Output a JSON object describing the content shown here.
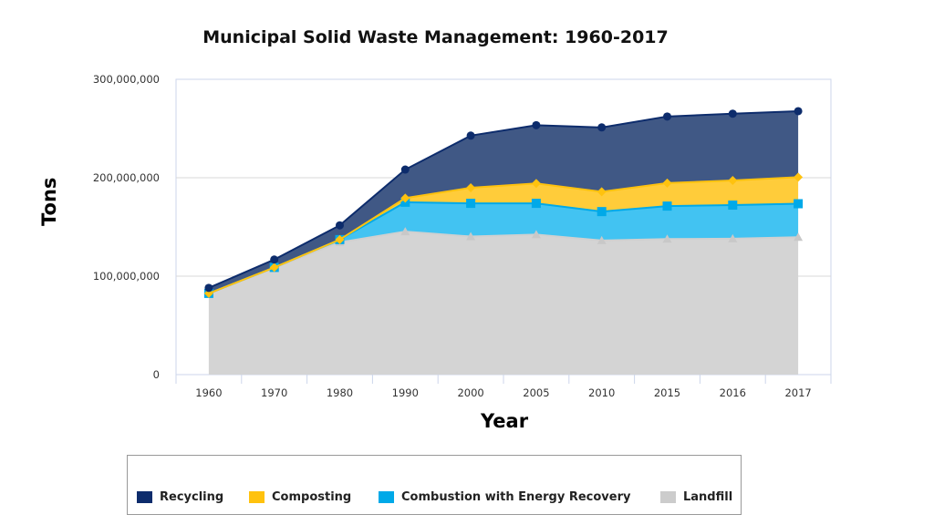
{
  "chart_data": {
    "type": "area",
    "stacked": true,
    "title": "Municipal Solid Waste Management: 1960-2017",
    "xlabel": "Year",
    "ylabel": "Tons",
    "categories": [
      "1960",
      "1970",
      "1980",
      "1990",
      "2000",
      "2005",
      "2010",
      "2015",
      "2016",
      "2017"
    ],
    "ylim": [
      0,
      300000000
    ],
    "yticks": [
      "0",
      "100,000,000",
      "200,000,000",
      "300,000,000"
    ],
    "grid": true,
    "legend_position": "bottom",
    "series": [
      {
        "name": "Landfill",
        "color": "#d4d4d4",
        "marker": "triangle",
        "values": [
          82500000,
          108400000,
          134400000,
          145300000,
          140300000,
          142300000,
          136200000,
          137700000,
          138100000,
          139600000
        ]
      },
      {
        "name": "Combustion with Energy Recovery",
        "color": "#00a9e8",
        "marker": "square",
        "values": [
          0,
          500000,
          2750000,
          29800000,
          33700000,
          31700000,
          29400000,
          33500000,
          34100000,
          34000000
        ]
      },
      {
        "name": "Composting",
        "color": "#ffc20e",
        "marker": "diamond",
        "values": [
          0,
          0,
          0,
          4200000,
          15800000,
          20200000,
          20200000,
          23400000,
          25000000,
          27000000
        ]
      },
      {
        "name": "Recycling",
        "color": "#0d2c6c",
        "marker": "circle",
        "values": [
          5600000,
          8000000,
          14500000,
          29000000,
          53000000,
          59200000,
          65300000,
          67600000,
          67900000,
          67000000
        ]
      }
    ]
  }
}
